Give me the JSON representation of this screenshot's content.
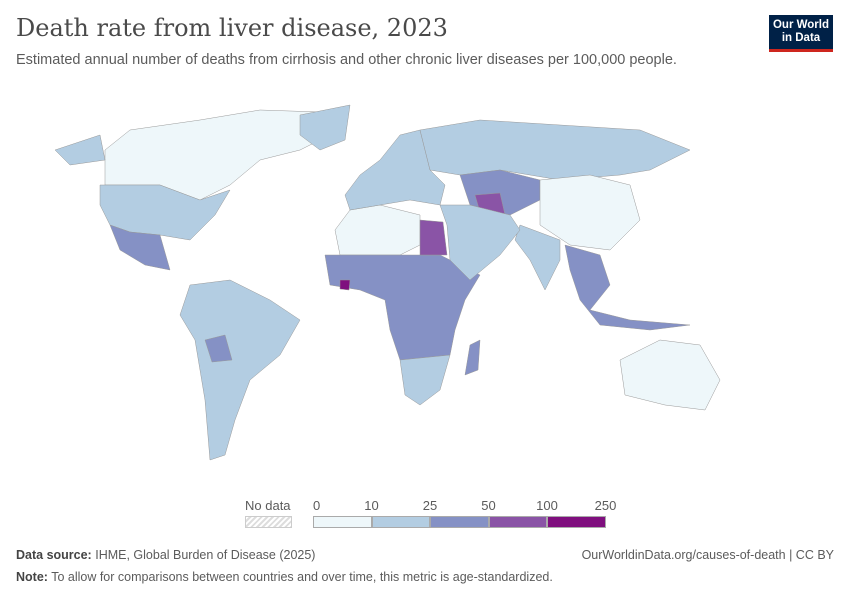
{
  "title": "Death rate from liver disease, 2023",
  "subtitle": "Estimated annual number of deaths from cirrhosis and other chronic liver diseases per 100,000 people.",
  "logo": {
    "line1": "Our World",
    "line2": "in Data"
  },
  "legend": {
    "no_data": "No data",
    "ticks": [
      "0",
      "10",
      "25",
      "50",
      "100",
      "250"
    ],
    "colors": [
      "#eef7fa",
      "#b3cde2",
      "#8591c5",
      "#8a54a6",
      "#7f0f7e"
    ],
    "no_data_color": "#f0f0f0"
  },
  "regions": [
    {
      "name": "Canada",
      "bin": 0
    },
    {
      "name": "United States",
      "bin": 1
    },
    {
      "name": "Greenland",
      "bin": 1
    },
    {
      "name": "Mexico",
      "bin": 2
    },
    {
      "name": "South America",
      "bin": 1
    },
    {
      "name": "Bolivia",
      "bin": 2
    },
    {
      "name": "North Africa",
      "bin": 0
    },
    {
      "name": "Sub-Saharan Africa",
      "bin": 2
    },
    {
      "name": "Southern Africa",
      "bin": 1
    },
    {
      "name": "Egypt",
      "bin": 3
    },
    {
      "name": "Europe",
      "bin": 1
    },
    {
      "name": "Russia",
      "bin": 1
    },
    {
      "name": "Central Asia",
      "bin": 2
    },
    {
      "name": "Turkmenistan",
      "bin": 3
    },
    {
      "name": "China",
      "bin": 0
    },
    {
      "name": "India",
      "bin": 1
    },
    {
      "name": "Middle East",
      "bin": 1
    },
    {
      "name": "Southeast Asia",
      "bin": 2
    },
    {
      "name": "Australia",
      "bin": 0
    },
    {
      "name": "Madagascar",
      "bin": 2
    },
    {
      "name": "Sierra Leone",
      "bin": 4
    }
  ],
  "footer": {
    "source_label": "Data source:",
    "source": "IHME, Global Burden of Disease (2025)",
    "url": "OurWorldinData.org/causes-of-death | CC BY",
    "note_label": "Note:",
    "note": "To allow for comparisons between countries and over time, this metric is age-standardized."
  }
}
